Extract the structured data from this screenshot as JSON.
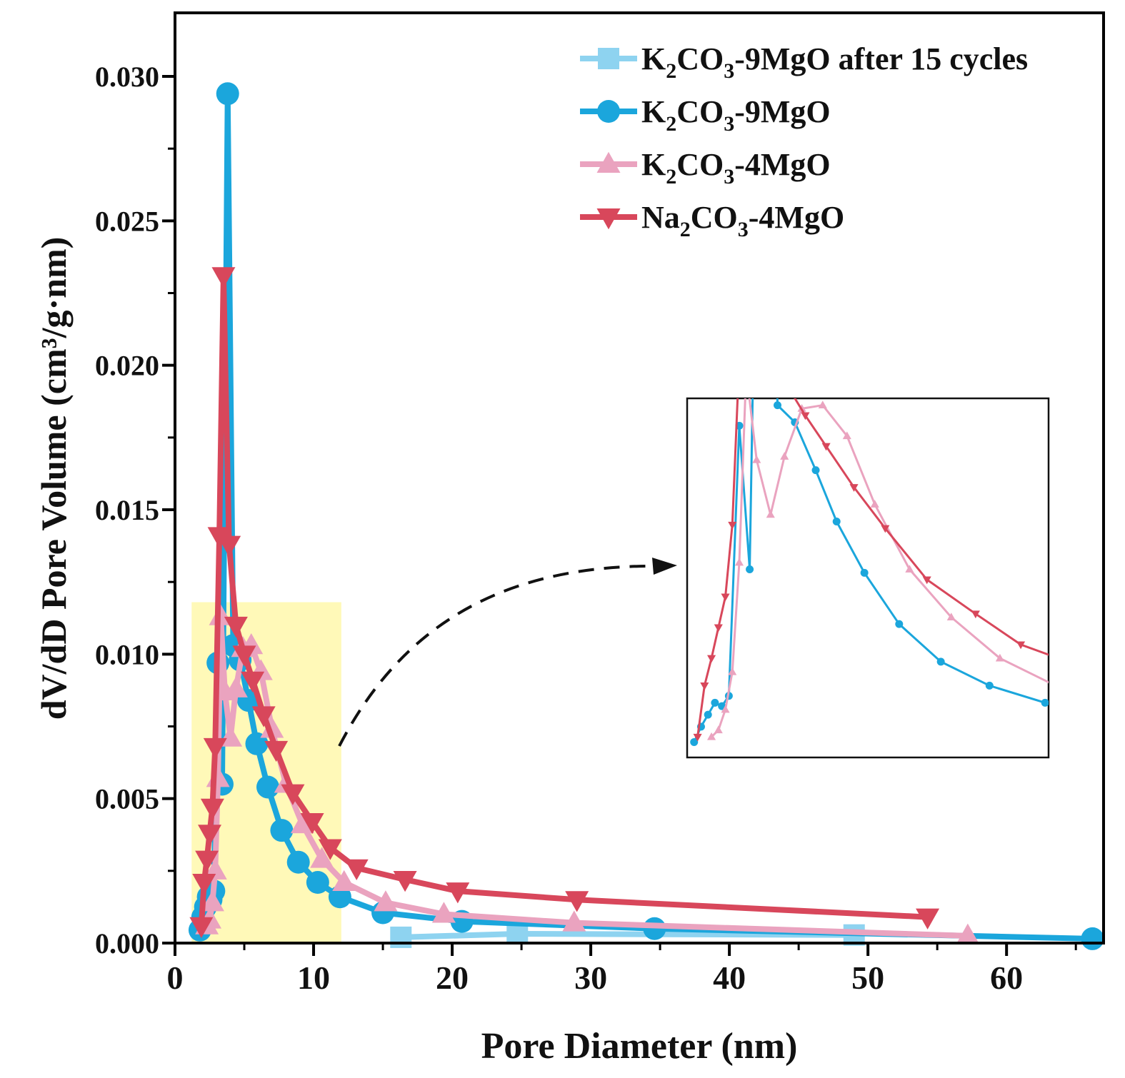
{
  "chart_data": {
    "type": "line",
    "xlabel": "Pore Diameter (nm)",
    "ylabel": "dV/dD Pore Volume (cm³/g·nm)",
    "xlim": [
      0,
      67
    ],
    "ylim": [
      0,
      0.0322
    ],
    "xticks": [
      0,
      10,
      20,
      30,
      40,
      50,
      60
    ],
    "xtick_labels": [
      "0",
      "10",
      "20",
      "30",
      "40",
      "50",
      "60"
    ],
    "yticks": [
      0,
      0.005,
      0.01,
      0.015,
      0.02,
      0.025,
      0.03
    ],
    "ytick_labels": [
      "0.000",
      "0.005",
      "0.010",
      "0.015",
      "0.020",
      "0.025",
      "0.030"
    ],
    "legend_position": "top-right",
    "grid": false,
    "highlight_region": {
      "x": [
        1.2,
        12
      ],
      "y": [
        0,
        0.0118
      ],
      "color": "#fff9b8"
    },
    "series": [
      {
        "name": "K₂CO₃-9MgO after 15 cycles",
        "legend": {
          "a": "K",
          "sub1": "2",
          "b": "CO",
          "sub2": "3",
          "c": "-9MgO after 15 cycles"
        },
        "color": "#8ed3f0",
        "marker": "square",
        "x": [
          16.3,
          24.7,
          49.0
        ],
        "y": [
          0.0002,
          0.00032,
          0.00028
        ]
      },
      {
        "name": "K₂CO₃-9MgO",
        "legend": {
          "a": "K",
          "sub1": "2",
          "b": "CO",
          "sub2": "3",
          "c": "-9MgO"
        },
        "color": "#1ba6dc",
        "marker": "circle",
        "x": [
          1.8,
          2.0,
          2.2,
          2.4,
          2.6,
          2.8,
          3.1,
          3.4,
          3.8,
          4.2,
          4.7,
          5.3,
          5.9,
          6.7,
          7.7,
          8.9,
          10.3,
          11.9,
          15.0,
          20.7,
          34.6,
          66.2
        ],
        "y": [
          0.00045,
          0.0009,
          0.00125,
          0.0016,
          0.0015,
          0.0018,
          0.0097,
          0.0055,
          0.0294,
          0.0103,
          0.0098,
          0.0084,
          0.0069,
          0.0054,
          0.0039,
          0.0028,
          0.0021,
          0.0016,
          0.00105,
          0.00075,
          0.0005,
          0.00015
        ]
      },
      {
        "name": "K₂CO₃-4MgO",
        "legend": {
          "a": "K",
          "sub1": "2",
          "b": "CO",
          "sub2": "3",
          "c": "-4MgO"
        },
        "color": "#eaa3bf",
        "marker": "triangle-up",
        "x": [
          2.3,
          2.5,
          2.7,
          2.9,
          3.1,
          3.3,
          3.6,
          4.0,
          4.4,
          4.9,
          5.5,
          6.2,
          7.0,
          8.0,
          9.2,
          10.6,
          12.2,
          15.2,
          19.4,
          28.8,
          57.2
        ],
        "y": [
          0.0006,
          0.0008,
          0.0014,
          0.0025,
          0.0057,
          0.0113,
          0.0087,
          0.0071,
          0.0088,
          0.0102,
          0.0103,
          0.0094,
          0.0074,
          0.0055,
          0.0041,
          0.0029,
          0.0021,
          0.0014,
          0.001,
          0.0007,
          0.00025
        ]
      },
      {
        "name": "Na₂CO₃-4MgO",
        "legend": {
          "a": "Na",
          "sub1": "2",
          "b": "CO",
          "sub2": "3",
          "c": "-4MgO"
        },
        "color": "#d8475b",
        "marker": "triangle-down",
        "x": [
          1.9,
          2.1,
          2.3,
          2.5,
          2.7,
          2.9,
          3.2,
          3.5,
          3.9,
          4.4,
          5.0,
          5.6,
          6.4,
          7.3,
          8.5,
          9.9,
          11.2,
          13.1,
          16.6,
          20.4,
          29.0,
          54.3
        ],
        "y": [
          0.0006,
          0.0021,
          0.0029,
          0.0038,
          0.0047,
          0.0068,
          0.0141,
          0.0231,
          0.0138,
          0.011,
          0.01,
          0.0091,
          0.0079,
          0.0067,
          0.0052,
          0.0042,
          0.0033,
          0.0026,
          0.0022,
          0.0018,
          0.0015,
          0.0009
        ]
      }
    ]
  }
}
